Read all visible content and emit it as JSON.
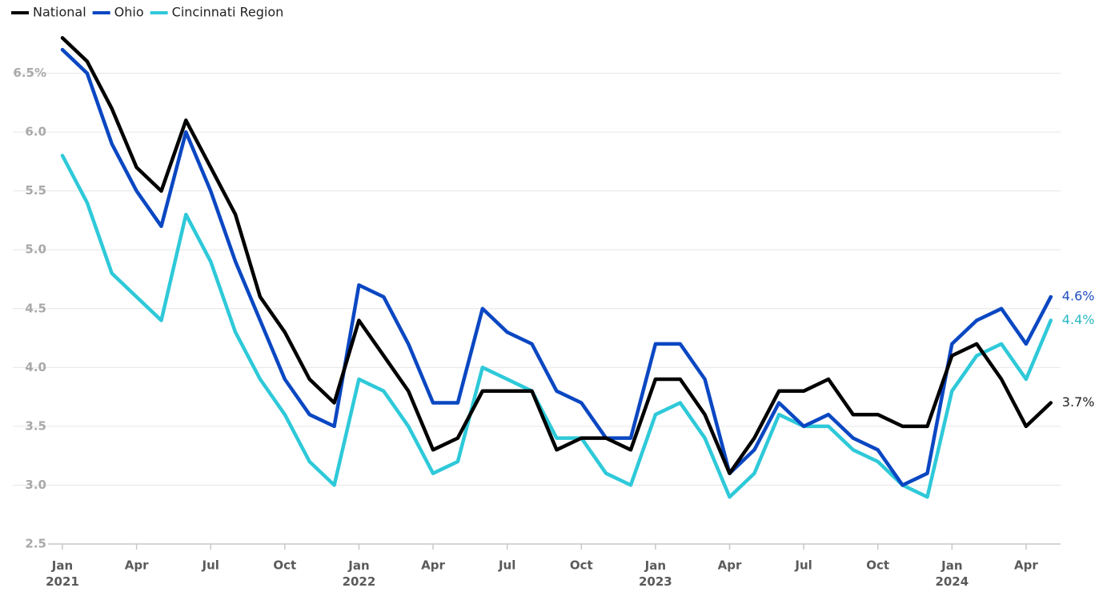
{
  "chart_data": {
    "type": "line",
    "categories": [
      "Jan\n2021",
      null,
      null,
      "Apr",
      null,
      null,
      "Jul",
      null,
      null,
      "Oct",
      null,
      null,
      "Jan\n2022",
      null,
      null,
      "Apr",
      null,
      null,
      "Jul",
      null,
      null,
      "Oct",
      null,
      null,
      "Jan\n2023",
      null,
      null,
      "Apr",
      null,
      null,
      "Jul",
      null,
      null,
      "Oct",
      null,
      null,
      "Jan\n2024",
      null,
      null,
      "Apr",
      null
    ],
    "series": [
      {
        "name": "National",
        "color": "#000000",
        "values": [
          6.8,
          6.6,
          6.2,
          5.7,
          5.5,
          6.1,
          5.7,
          5.3,
          4.6,
          4.3,
          3.9,
          3.7,
          4.4,
          4.1,
          3.8,
          3.3,
          3.4,
          3.8,
          3.8,
          3.8,
          3.3,
          3.4,
          3.4,
          3.3,
          3.9,
          3.9,
          3.6,
          3.1,
          3.4,
          3.8,
          3.8,
          3.9,
          3.6,
          3.6,
          3.5,
          3.5,
          4.1,
          4.2,
          3.9,
          3.5,
          3.7
        ],
        "value_labels": [
          null,
          null,
          null,
          null,
          null,
          null,
          null,
          null,
          null,
          null,
          null,
          null,
          null,
          null,
          null,
          null,
          null,
          null,
          null,
          null,
          null,
          null,
          null,
          null,
          null,
          null,
          null,
          null,
          null,
          null,
          null,
          null,
          null,
          null,
          null,
          null,
          null,
          null,
          null,
          null,
          "3.7%"
        ],
        "label_color": "#222222"
      },
      {
        "name": "Ohio",
        "color": "#0a47c2",
        "values": [
          6.7,
          6.5,
          5.9,
          5.5,
          5.2,
          6.0,
          5.5,
          4.9,
          4.4,
          3.9,
          3.6,
          3.5,
          4.7,
          4.6,
          4.2,
          3.7,
          3.7,
          4.5,
          4.3,
          4.2,
          3.8,
          3.7,
          3.4,
          3.4,
          4.2,
          4.2,
          3.9,
          3.1,
          3.3,
          3.7,
          3.5,
          3.6,
          3.4,
          3.3,
          3.0,
          3.1,
          4.2,
          4.4,
          4.5,
          4.2,
          4.6
        ],
        "value_labels": [
          null,
          null,
          null,
          null,
          null,
          null,
          null,
          null,
          null,
          null,
          null,
          null,
          null,
          null,
          null,
          null,
          null,
          null,
          null,
          null,
          null,
          null,
          null,
          null,
          null,
          null,
          null,
          null,
          null,
          null,
          null,
          null,
          null,
          null,
          null,
          null,
          null,
          null,
          null,
          null,
          "4.6%"
        ],
        "label_color": "#1f4fc0"
      },
      {
        "name": "Cincinnati Region",
        "color": "#2ec9d9",
        "values": [
          5.8,
          5.4,
          4.8,
          4.6,
          4.4,
          5.3,
          4.9,
          4.3,
          3.9,
          3.6,
          3.2,
          3.0,
          3.9,
          3.8,
          3.5,
          3.1,
          3.2,
          4.0,
          3.9,
          3.8,
          3.4,
          3.4,
          3.1,
          3.0,
          3.6,
          3.7,
          3.4,
          2.9,
          3.1,
          3.6,
          3.5,
          3.5,
          3.3,
          3.2,
          3.0,
          2.9,
          3.8,
          4.1,
          4.2,
          3.9,
          4.4
        ],
        "value_labels": [
          null,
          null,
          null,
          null,
          null,
          null,
          null,
          null,
          null,
          null,
          null,
          null,
          null,
          null,
          null,
          null,
          null,
          null,
          null,
          null,
          null,
          null,
          null,
          null,
          null,
          null,
          null,
          null,
          null,
          null,
          null,
          null,
          null,
          null,
          null,
          null,
          null,
          null,
          null,
          null,
          "4.4%"
        ],
        "label_color": "#2bb8c4"
      }
    ],
    "ylim": [
      2.5,
      7.0
    ],
    "yticks": [
      2.5,
      {
        "value": 3,
        "label": "3.0"
      },
      3.5,
      {
        "value": 4,
        "label": "4.0"
      },
      4.5,
      {
        "value": 5,
        "label": "5.0"
      },
      5.5,
      {
        "value": 6,
        "label": "6.0"
      },
      {
        "value": 6.5,
        "label": "6.5%"
      }
    ],
    "grid": true,
    "legend": "top-left"
  }
}
